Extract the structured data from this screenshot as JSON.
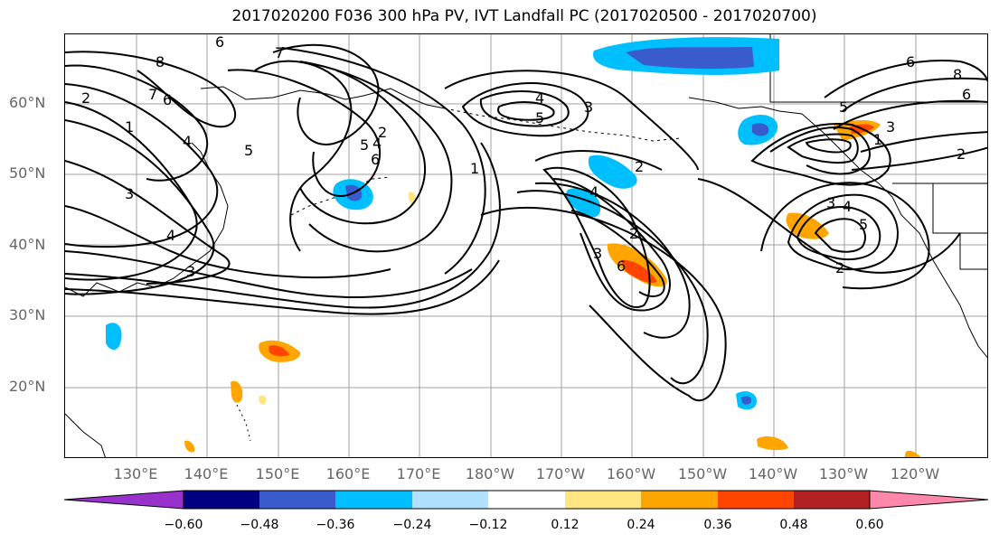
{
  "title": "2017020200 F036 300 hPa PV, IVT Landfall PC (2017020500 - 2017020700)",
  "lat_labels": [
    "60°N",
    "50°N",
    "40°N",
    "30°N",
    "20°N"
  ],
  "lon_labels": [
    "130°E",
    "140°E",
    "150°E",
    "160°E",
    "170°E",
    "180°W",
    "170°W",
    "160°W",
    "150°W",
    "140°W",
    "130°W",
    "120°W"
  ],
  "colorbar": {
    "colors": [
      "#9932cc",
      "#000080",
      "#3a5bcc",
      "#00bfff",
      "#b0e2ff",
      "#ffffff",
      "#ffe680",
      "#ffa500",
      "#ff4500",
      "#b22222",
      "#ff88aa"
    ],
    "tick_labels": [
      "−0.60",
      "−0.48",
      "−0.36",
      "−0.24",
      "−0.12",
      "0.12",
      "0.24",
      "0.36",
      "0.48",
      "0.60"
    ]
  },
  "contour_labels": [
    "6",
    "8",
    "7",
    "6",
    "2",
    "1",
    "3",
    "4",
    "3",
    "5",
    "4",
    "2",
    "5",
    "6",
    "4",
    "5",
    "4",
    "3",
    "1",
    "7",
    "2",
    "4",
    "3",
    "6",
    "2",
    "3",
    "4",
    "5",
    "2",
    "6",
    "8",
    "6",
    "5",
    "1",
    "2",
    "3"
  ]
}
